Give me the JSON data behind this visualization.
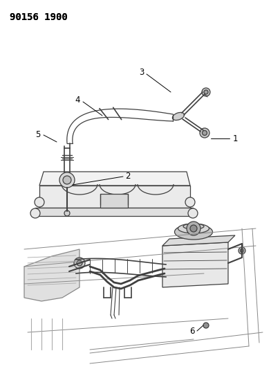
{
  "title": "90156 1900",
  "bg_color": "#ffffff",
  "line_color": "#404040",
  "label_color": "#000000",
  "label_fontsize": 8.5,
  "title_fontsize": 10,
  "title_fontweight": "bold"
}
